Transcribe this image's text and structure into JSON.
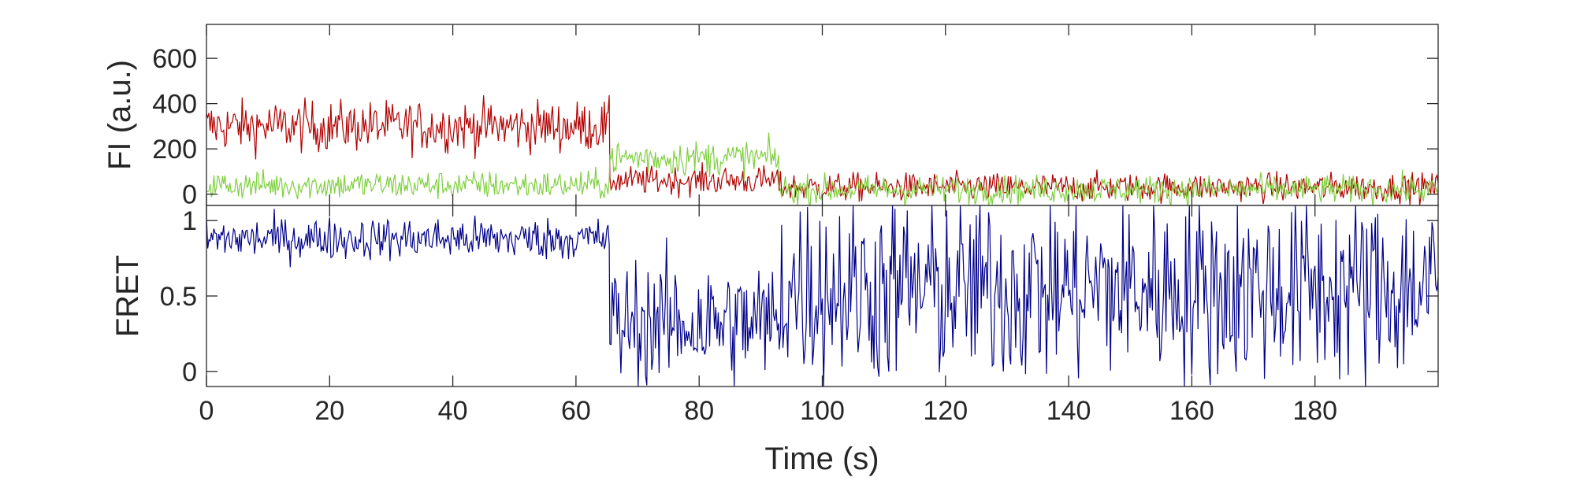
{
  "chart_data": [
    {
      "type": "line",
      "panel": "top",
      "ylabel": "FI (a.u.)",
      "xlabel": "",
      "xlim": [
        0,
        200
      ],
      "ylim": [
        -50,
        750
      ],
      "yticks": [
        0,
        200,
        400,
        600
      ],
      "grid": false,
      "legend": "none",
      "series": [
        {
          "color": "#b30000",
          "segments": [
            {
              "x_start": 0,
              "x_end": 65.5,
              "level": 300,
              "noise": 80
            },
            {
              "x_start": 65.5,
              "x_end": 93,
              "level": 60,
              "noise": 45
            },
            {
              "x_start": 93,
              "x_end": 200,
              "level": 30,
              "noise": 45
            }
          ]
        },
        {
          "color": "#7fcf3f",
          "segments": [
            {
              "x_start": 0,
              "x_end": 65.5,
              "level": 40,
              "noise": 45
            },
            {
              "x_start": 65.5,
              "x_end": 93,
              "level": 160,
              "noise": 55
            },
            {
              "x_start": 93,
              "x_end": 200,
              "level": 20,
              "noise": 45
            }
          ]
        }
      ]
    },
    {
      "type": "line",
      "panel": "bottom",
      "ylabel": "FRET",
      "xlabel": "Time (s)",
      "xlim": [
        0,
        200
      ],
      "ylim": [
        -0.1,
        1.1
      ],
      "xticks": [
        0,
        20,
        40,
        60,
        80,
        100,
        120,
        140,
        160,
        180
      ],
      "yticks": [
        0,
        0.5,
        1
      ],
      "ytick_labels": [
        "0",
        "0.5",
        "1"
      ],
      "grid": false,
      "legend": "none",
      "series": [
        {
          "color": "#00008b",
          "segments": [
            {
              "x_start": 0,
              "x_end": 65.5,
              "level": 0.88,
              "noise": 0.1
            },
            {
              "x_start": 65.5,
              "x_end": 93,
              "level": 0.32,
              "noise": 0.3
            },
            {
              "x_start": 93,
              "x_end": 200,
              "level": 0.55,
              "noise": 0.45
            }
          ]
        }
      ]
    }
  ]
}
